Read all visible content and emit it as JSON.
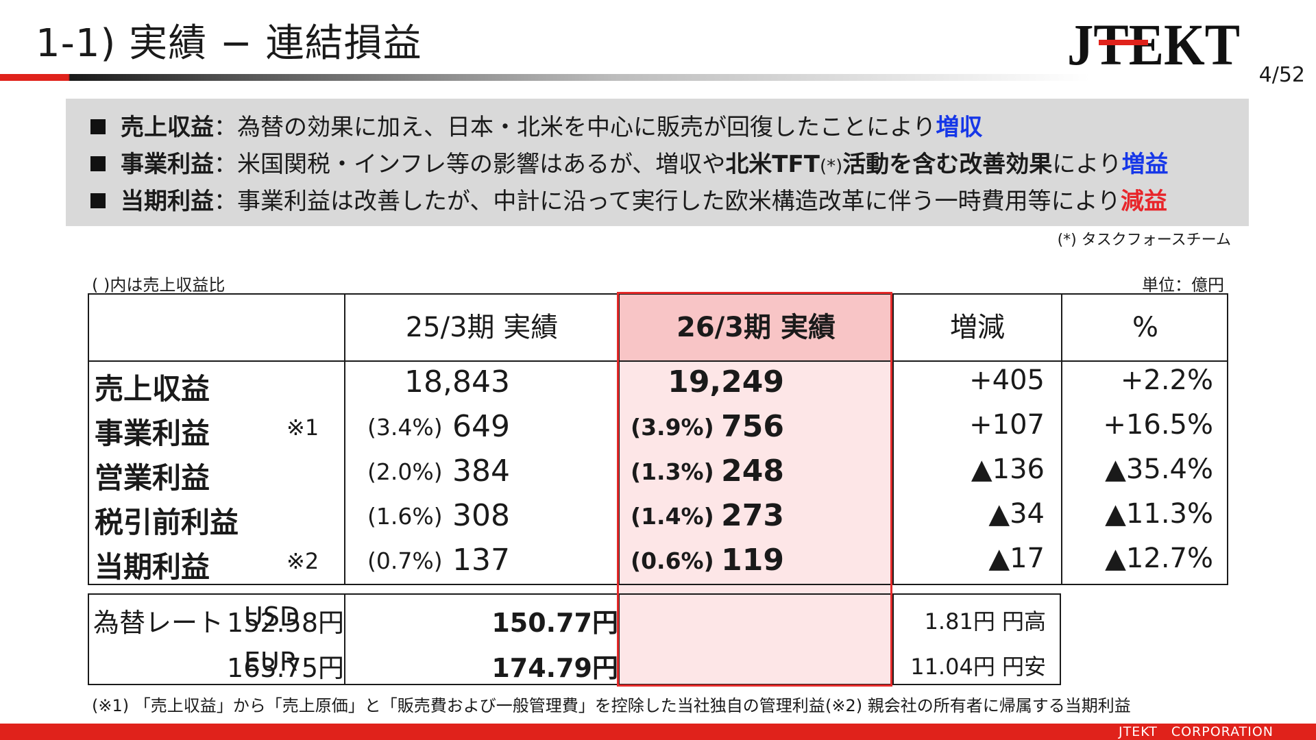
{
  "header": {
    "title": "1-1) 実績 − 連結損益",
    "logo_text": "JTEKT",
    "page": "4/52"
  },
  "summary": [
    {
      "key": "売上収益",
      "colon": "：",
      "text_a": "為替の効果に加え、日本・北米を中心に販売が回復したことにより",
      "bold_mid": "",
      "text_b": "",
      "verdict": "増収",
      "verdict_color": "#1637e8"
    },
    {
      "key": "事業利益",
      "colon": "：",
      "text_a": "米国関税・インフレ等の影響はあるが、増収や",
      "bold_mid": "北米TFT",
      "text_b": "(*)",
      "bold_tail": "活動を含む改善効果",
      "text_c": "により",
      "verdict": "増益",
      "verdict_color": "#1637e8"
    },
    {
      "key": "当期利益",
      "colon": "：",
      "text_a": "事業利益は改善したが、中計に沿って実行した欧米構造改革に伴う一時費用等により",
      "bold_mid": "",
      "text_b": "",
      "verdict": "減益",
      "verdict_color": "#e8252a"
    }
  ],
  "summary_footnote": "(*) タスクフォースチーム",
  "table_note_left": "( )内は売上収益比",
  "table_note_right": "単位：億円",
  "table": {
    "headers": [
      "25/3期 実績",
      "26/3期 実績",
      "増減",
      "%"
    ],
    "rows": [
      {
        "label": "売上収益",
        "mark": "",
        "prev_ratio": "",
        "prev": "18,843",
        "curr_ratio": "",
        "curr": "19,249",
        "diff": "+405",
        "pct": "+2.2%"
      },
      {
        "label": "事業利益",
        "mark": "※1",
        "prev_ratio": "(3.4%)",
        "prev": "649",
        "curr_ratio": "(3.9%)",
        "curr": "756",
        "diff": "+107",
        "pct": "+16.5%"
      },
      {
        "label": "営業利益",
        "mark": "",
        "prev_ratio": "(2.0%)",
        "prev": "384",
        "curr_ratio": "(1.3%)",
        "curr": "248",
        "diff": "▲136",
        "pct": "▲35.4%"
      },
      {
        "label": "税引前利益",
        "mark": "",
        "prev_ratio": "(1.6%)",
        "prev": "308",
        "curr_ratio": "(1.4%)",
        "curr": "273",
        "diff": "▲34",
        "pct": "▲11.3%"
      },
      {
        "label": "当期利益",
        "mark": "※2",
        "prev_ratio": "(0.7%)",
        "prev": "137",
        "curr_ratio": "(0.6%)",
        "curr": "119",
        "diff": "▲17",
        "pct": "▲12.7%"
      }
    ]
  },
  "fx": {
    "label": "為替レート",
    "rows": [
      {
        "ccy": "USD",
        "prev": "152.58円",
        "curr": "150.77円",
        "diff": "1.81円 円高"
      },
      {
        "ccy": "EUR",
        "prev": "163.75円",
        "curr": "174.79円",
        "diff": "11.04円 円安"
      }
    ]
  },
  "footnotes": {
    "n1": "(※1) 「売上収益」から「売上原価」と「販売費および一般管理費」を控除した当社独自の管理利益",
    "n2": "(※2) 親会社の所有者に帰属する当期利益"
  },
  "footer": {
    "corp": "JTEKT　CORPORATION"
  },
  "colors": {
    "accent_red": "#e0221b",
    "blue": "#1637e8",
    "highlight_fill": "#fde6e7",
    "highlight_head": "#f8c5c6"
  }
}
